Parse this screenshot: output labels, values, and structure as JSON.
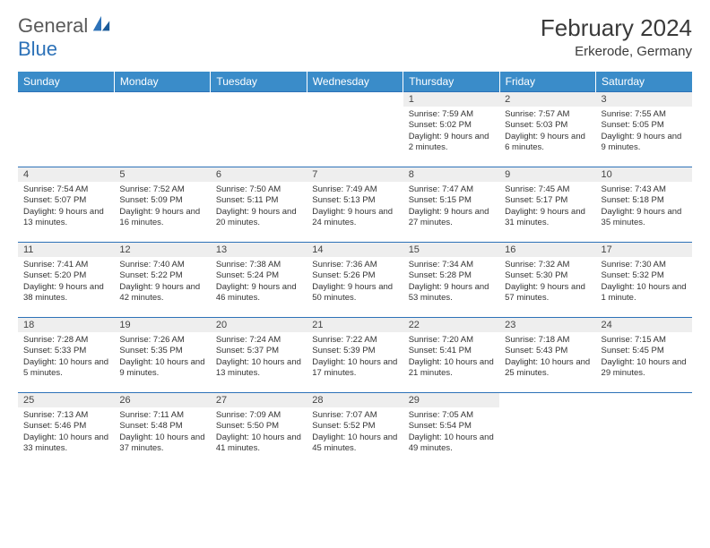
{
  "logo": {
    "text_a": "General",
    "text_b": "Blue"
  },
  "title": "February 2024",
  "location": "Erkerode, Germany",
  "colors": {
    "header_bg": "#3a8cc9",
    "header_text": "#ffffff",
    "border": "#2d72b8",
    "daynum_bg": "#eeeeee",
    "text": "#333333"
  },
  "weekdays": [
    "Sunday",
    "Monday",
    "Tuesday",
    "Wednesday",
    "Thursday",
    "Friday",
    "Saturday"
  ],
  "weeks": [
    [
      null,
      null,
      null,
      null,
      {
        "n": "1",
        "sr": "7:59 AM",
        "ss": "5:02 PM",
        "dl": "9 hours and 2 minutes."
      },
      {
        "n": "2",
        "sr": "7:57 AM",
        "ss": "5:03 PM",
        "dl": "9 hours and 6 minutes."
      },
      {
        "n": "3",
        "sr": "7:55 AM",
        "ss": "5:05 PM",
        "dl": "9 hours and 9 minutes."
      }
    ],
    [
      {
        "n": "4",
        "sr": "7:54 AM",
        "ss": "5:07 PM",
        "dl": "9 hours and 13 minutes."
      },
      {
        "n": "5",
        "sr": "7:52 AM",
        "ss": "5:09 PM",
        "dl": "9 hours and 16 minutes."
      },
      {
        "n": "6",
        "sr": "7:50 AM",
        "ss": "5:11 PM",
        "dl": "9 hours and 20 minutes."
      },
      {
        "n": "7",
        "sr": "7:49 AM",
        "ss": "5:13 PM",
        "dl": "9 hours and 24 minutes."
      },
      {
        "n": "8",
        "sr": "7:47 AM",
        "ss": "5:15 PM",
        "dl": "9 hours and 27 minutes."
      },
      {
        "n": "9",
        "sr": "7:45 AM",
        "ss": "5:17 PM",
        "dl": "9 hours and 31 minutes."
      },
      {
        "n": "10",
        "sr": "7:43 AM",
        "ss": "5:18 PM",
        "dl": "9 hours and 35 minutes."
      }
    ],
    [
      {
        "n": "11",
        "sr": "7:41 AM",
        "ss": "5:20 PM",
        "dl": "9 hours and 38 minutes."
      },
      {
        "n": "12",
        "sr": "7:40 AM",
        "ss": "5:22 PM",
        "dl": "9 hours and 42 minutes."
      },
      {
        "n": "13",
        "sr": "7:38 AM",
        "ss": "5:24 PM",
        "dl": "9 hours and 46 minutes."
      },
      {
        "n": "14",
        "sr": "7:36 AM",
        "ss": "5:26 PM",
        "dl": "9 hours and 50 minutes."
      },
      {
        "n": "15",
        "sr": "7:34 AM",
        "ss": "5:28 PM",
        "dl": "9 hours and 53 minutes."
      },
      {
        "n": "16",
        "sr": "7:32 AM",
        "ss": "5:30 PM",
        "dl": "9 hours and 57 minutes."
      },
      {
        "n": "17",
        "sr": "7:30 AM",
        "ss": "5:32 PM",
        "dl": "10 hours and 1 minute."
      }
    ],
    [
      {
        "n": "18",
        "sr": "7:28 AM",
        "ss": "5:33 PM",
        "dl": "10 hours and 5 minutes."
      },
      {
        "n": "19",
        "sr": "7:26 AM",
        "ss": "5:35 PM",
        "dl": "10 hours and 9 minutes."
      },
      {
        "n": "20",
        "sr": "7:24 AM",
        "ss": "5:37 PM",
        "dl": "10 hours and 13 minutes."
      },
      {
        "n": "21",
        "sr": "7:22 AM",
        "ss": "5:39 PM",
        "dl": "10 hours and 17 minutes."
      },
      {
        "n": "22",
        "sr": "7:20 AM",
        "ss": "5:41 PM",
        "dl": "10 hours and 21 minutes."
      },
      {
        "n": "23",
        "sr": "7:18 AM",
        "ss": "5:43 PM",
        "dl": "10 hours and 25 minutes."
      },
      {
        "n": "24",
        "sr": "7:15 AM",
        "ss": "5:45 PM",
        "dl": "10 hours and 29 minutes."
      }
    ],
    [
      {
        "n": "25",
        "sr": "7:13 AM",
        "ss": "5:46 PM",
        "dl": "10 hours and 33 minutes."
      },
      {
        "n": "26",
        "sr": "7:11 AM",
        "ss": "5:48 PM",
        "dl": "10 hours and 37 minutes."
      },
      {
        "n": "27",
        "sr": "7:09 AM",
        "ss": "5:50 PM",
        "dl": "10 hours and 41 minutes."
      },
      {
        "n": "28",
        "sr": "7:07 AM",
        "ss": "5:52 PM",
        "dl": "10 hours and 45 minutes."
      },
      {
        "n": "29",
        "sr": "7:05 AM",
        "ss": "5:54 PM",
        "dl": "10 hours and 49 minutes."
      },
      null,
      null
    ]
  ]
}
